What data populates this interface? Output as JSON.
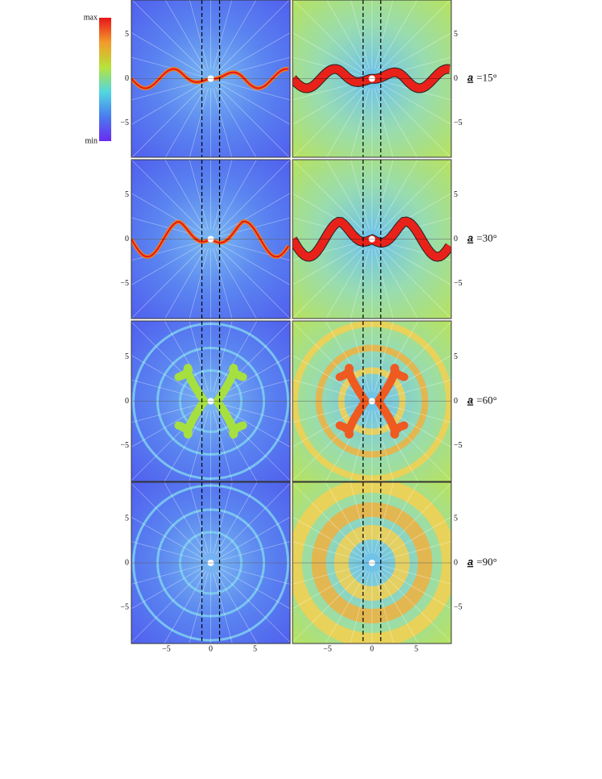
{
  "colorbar": {
    "max": "max",
    "min": "min"
  },
  "y_ticks": [
    "5",
    "0",
    "−5"
  ],
  "x_ticks": [
    "−5",
    "0",
    "5"
  ],
  "rows": [
    {
      "symbol": "a",
      "value": "=15°"
    },
    {
      "symbol": "a",
      "value": "=30°"
    },
    {
      "symbol": "a",
      "value": "=60°"
    },
    {
      "symbol": "a",
      "value": "=90°"
    }
  ]
}
